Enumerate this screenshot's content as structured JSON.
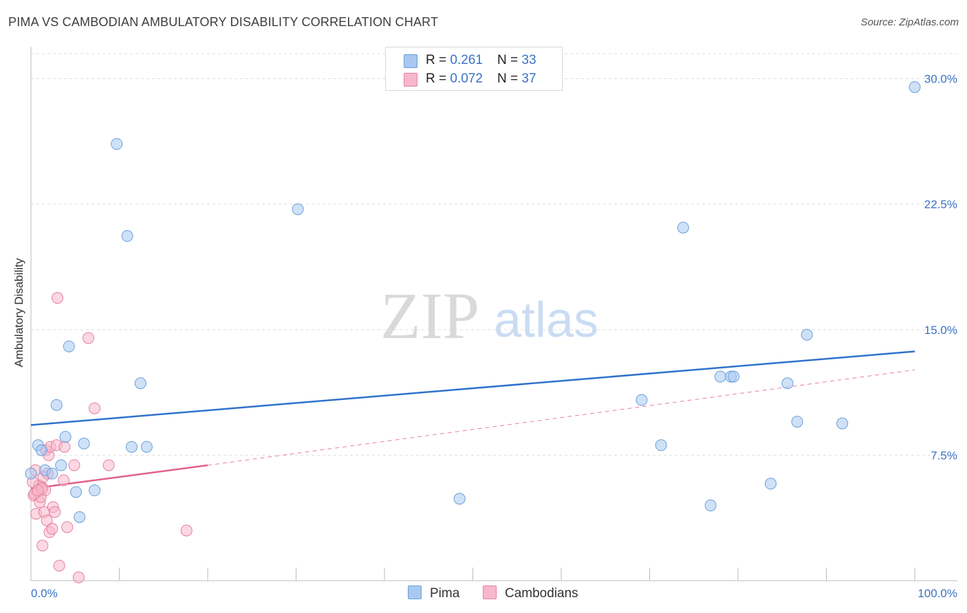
{
  "title": "PIMA VS CAMBODIAN AMBULATORY DISABILITY CORRELATION CHART",
  "source": "Source: ZipAtlas.com",
  "watermark": {
    "zip": "ZIP",
    "atlas": "atlas"
  },
  "colors": {
    "pima_fill": "#a8c8f0",
    "pima_stroke": "#6a9fd8",
    "pima_line": "#2f72cc",
    "camb_fill": "#f7b8cb",
    "camb_stroke": "#e57fa0",
    "camb_line": "#e2608a",
    "tick_text": "#3a72c4",
    "grid": "#dddddd"
  },
  "legend": {
    "rows": [
      {
        "r_label": "R = ",
        "r_value": "0.261",
        "n_label": "N = ",
        "n_value": "33"
      },
      {
        "r_label": "R = ",
        "r_value": "0.072",
        "n_label": "N = ",
        "n_value": "37"
      }
    ]
  },
  "bottom_legend": {
    "pima": "Pima",
    "cambodians": "Cambodians"
  },
  "chart_data": {
    "type": "scatter",
    "title": "PIMA VS CAMBODIAN AMBULATORY DISABILITY CORRELATION CHART",
    "xlabel": "",
    "ylabel": "Ambulatory Disability",
    "xlim": [
      0,
      100
    ],
    "ylim": [
      0,
      31.5
    ],
    "x_tick_labels": [
      "0.0%",
      "100.0%"
    ],
    "y_ticks": [
      7.5,
      15.0,
      22.5,
      30.0
    ],
    "y_tick_labels": [
      "7.5%",
      "15.0%",
      "22.5%",
      "30.0%"
    ],
    "grid": true,
    "series": [
      {
        "name": "Pima",
        "R": 0.261,
        "N": 33,
        "trend": {
          "x": [
            0,
            100
          ],
          "y": [
            9.3,
            13.7
          ],
          "style": "solid"
        },
        "points": [
          {
            "x": 0.0,
            "y": 6.4
          },
          {
            "x": 0.8,
            "y": 8.1
          },
          {
            "x": 1.2,
            "y": 7.8
          },
          {
            "x": 1.6,
            "y": 6.6
          },
          {
            "x": 2.4,
            "y": 6.4
          },
          {
            "x": 2.9,
            "y": 10.5
          },
          {
            "x": 3.4,
            "y": 6.9
          },
          {
            "x": 3.9,
            "y": 8.6
          },
          {
            "x": 4.3,
            "y": 14.0
          },
          {
            "x": 5.1,
            "y": 5.3
          },
          {
            "x": 5.5,
            "y": 3.8
          },
          {
            "x": 6.0,
            "y": 8.2
          },
          {
            "x": 7.2,
            "y": 5.4
          },
          {
            "x": 9.7,
            "y": 26.1
          },
          {
            "x": 10.9,
            "y": 20.6
          },
          {
            "x": 11.4,
            "y": 8.0
          },
          {
            "x": 12.4,
            "y": 11.8
          },
          {
            "x": 13.1,
            "y": 8.0
          },
          {
            "x": 30.2,
            "y": 22.2
          },
          {
            "x": 48.5,
            "y": 4.9
          },
          {
            "x": 69.1,
            "y": 10.8
          },
          {
            "x": 71.3,
            "y": 8.1
          },
          {
            "x": 73.8,
            "y": 21.1
          },
          {
            "x": 76.9,
            "y": 4.5
          },
          {
            "x": 78.0,
            "y": 12.2
          },
          {
            "x": 79.2,
            "y": 12.2
          },
          {
            "x": 79.5,
            "y": 12.2
          },
          {
            "x": 83.7,
            "y": 5.8
          },
          {
            "x": 85.6,
            "y": 11.8
          },
          {
            "x": 86.7,
            "y": 9.5
          },
          {
            "x": 87.8,
            "y": 14.7
          },
          {
            "x": 91.8,
            "y": 9.4
          },
          {
            "x": 100.0,
            "y": 29.5
          }
        ]
      },
      {
        "name": "Cambodians",
        "R": 0.072,
        "N": 37,
        "trend": {
          "x": [
            0,
            20
          ],
          "y": [
            5.5,
            6.9
          ],
          "style": "solid"
        },
        "trend_extension": {
          "x": [
            20,
            100
          ],
          "y": [
            6.9,
            12.6
          ],
          "style": "dashed"
        },
        "points": [
          {
            "x": 0.3,
            "y": 5.1
          },
          {
            "x": 0.5,
            "y": 6.6
          },
          {
            "x": 0.6,
            "y": 4.0
          },
          {
            "x": 0.7,
            "y": 5.3
          },
          {
            "x": 0.9,
            "y": 5.7
          },
          {
            "x": 1.0,
            "y": 4.7
          },
          {
            "x": 1.1,
            "y": 5.0
          },
          {
            "x": 1.2,
            "y": 5.6
          },
          {
            "x": 1.3,
            "y": 2.1
          },
          {
            "x": 1.4,
            "y": 6.2
          },
          {
            "x": 1.5,
            "y": 4.1
          },
          {
            "x": 1.6,
            "y": 5.4
          },
          {
            "x": 1.7,
            "y": 7.8
          },
          {
            "x": 1.8,
            "y": 3.6
          },
          {
            "x": 1.9,
            "y": 6.4
          },
          {
            "x": 2.0,
            "y": 7.5
          },
          {
            "x": 2.1,
            "y": 2.9
          },
          {
            "x": 2.2,
            "y": 8.0
          },
          {
            "x": 2.4,
            "y": 3.1
          },
          {
            "x": 2.5,
            "y": 4.4
          },
          {
            "x": 2.7,
            "y": 4.1
          },
          {
            "x": 2.9,
            "y": 8.1
          },
          {
            "x": 3.0,
            "y": 16.9
          },
          {
            "x": 3.2,
            "y": 0.9
          },
          {
            "x": 3.7,
            "y": 6.0
          },
          {
            "x": 3.8,
            "y": 8.0
          },
          {
            "x": 4.1,
            "y": 3.2
          },
          {
            "x": 4.9,
            "y": 6.9
          },
          {
            "x": 5.4,
            "y": 0.2
          },
          {
            "x": 6.5,
            "y": 14.5
          },
          {
            "x": 7.2,
            "y": 10.3
          },
          {
            "x": 8.8,
            "y": 6.9
          },
          {
            "x": 17.6,
            "y": 3.0
          },
          {
            "x": 0.2,
            "y": 5.9
          },
          {
            "x": 0.4,
            "y": 5.2
          },
          {
            "x": 1.25,
            "y": 5.5
          },
          {
            "x": 0.8,
            "y": 5.4
          }
        ]
      }
    ]
  }
}
